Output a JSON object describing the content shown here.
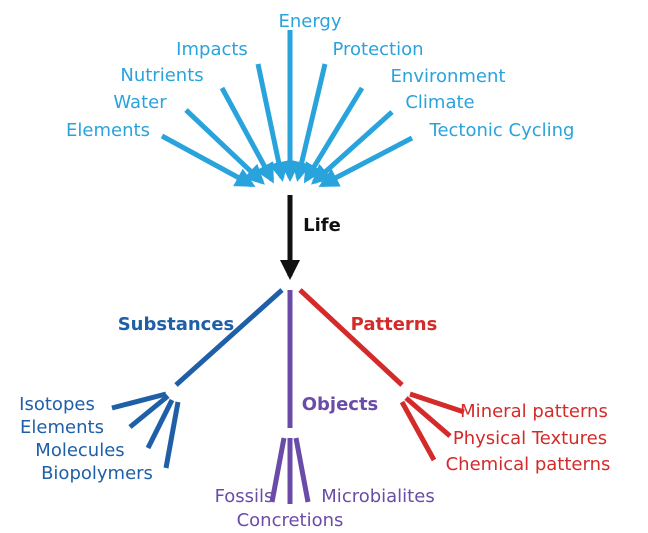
{
  "inputs": [
    "Energy",
    "Impacts",
    "Protection",
    "Nutrients",
    "Environment",
    "Water",
    "Climate",
    "Elements",
    "Tectonic Cycling"
  ],
  "center": "Life",
  "branches": [
    {
      "name": "Substances",
      "items": [
        "Isotopes",
        "Elements",
        "Molecules",
        "Biopolymers"
      ]
    },
    {
      "name": "Objects",
      "items": [
        "Fossils",
        "Concretions",
        "Microbialites"
      ]
    },
    {
      "name": "Patterns",
      "items": [
        "Mineral patterns",
        "Physical Textures",
        "Chemical patterns"
      ]
    }
  ]
}
